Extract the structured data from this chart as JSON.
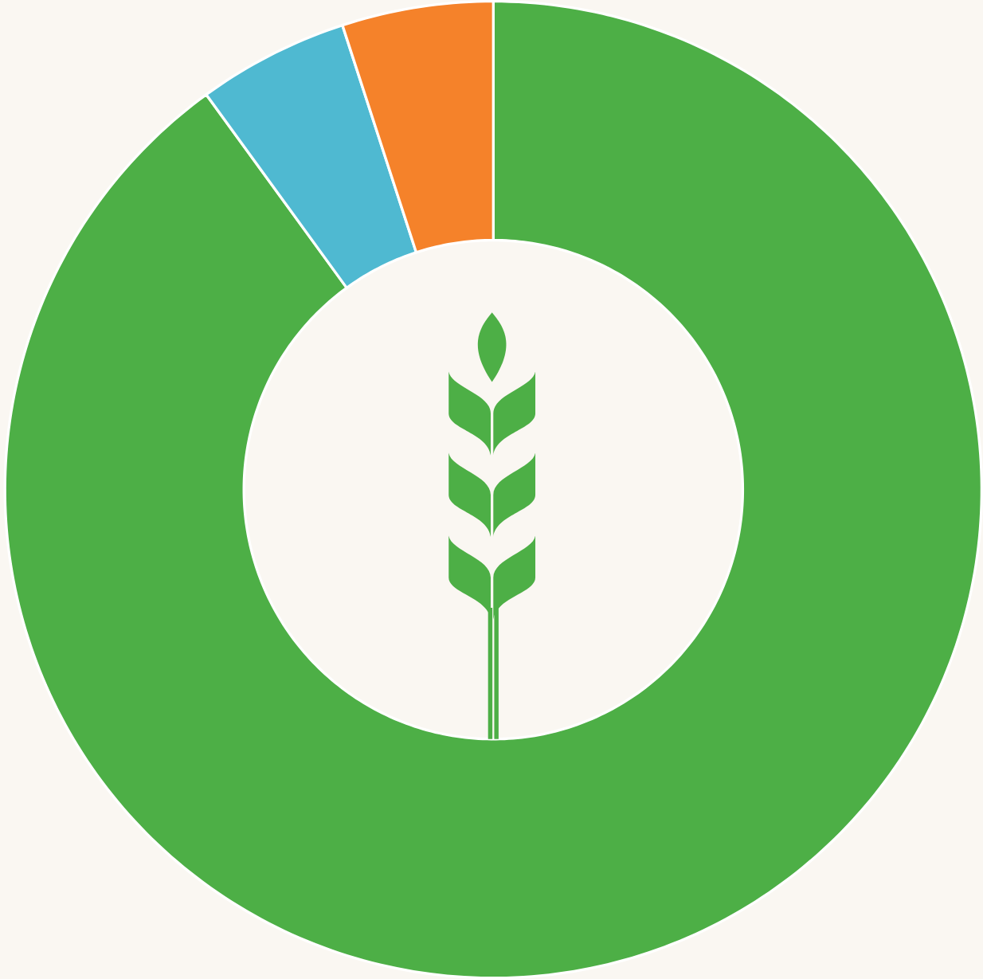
{
  "chart_data": {
    "type": "donut",
    "categories": [
      null,
      null,
      null
    ],
    "values": [
      90,
      5,
      5
    ],
    "colors": [
      "#4daf46",
      "#4fb9d1",
      "#f5822a"
    ]
  }
}
